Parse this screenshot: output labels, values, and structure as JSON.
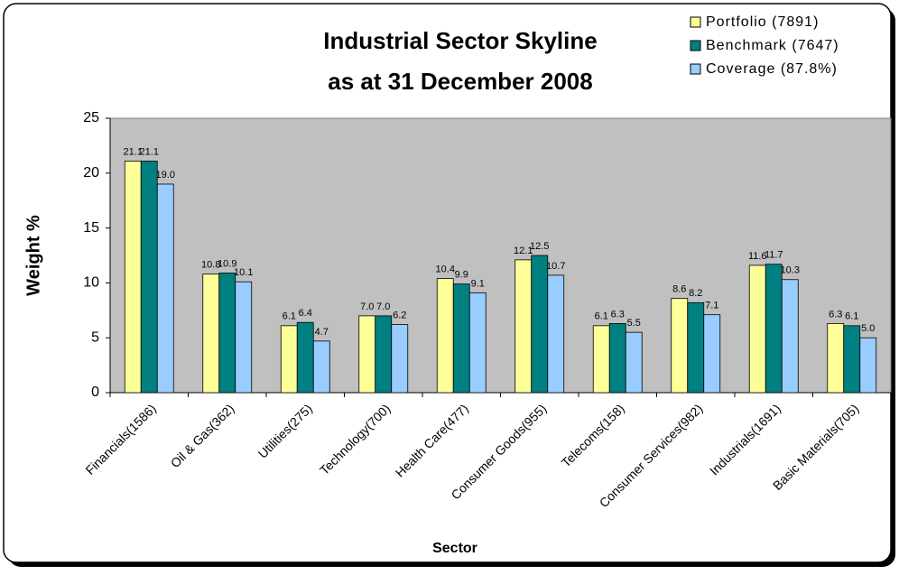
{
  "chart_data": {
    "type": "bar",
    "title": [
      "Industrial Sector Skyline",
      "as at 31 December 2008"
    ],
    "x_label": "Sector",
    "y_label": "Weight %",
    "categories": [
      "Financials(1586)",
      "Oil & Gas(362)",
      "Utilities(275)",
      "Technology(700)",
      "Health Care(477)",
      "Consumer Goods(955)",
      "Telecoms(158)",
      "Consumer Services(982)",
      "Industrials(1691)",
      "Basic Materials(705)"
    ],
    "series": [
      {
        "name": "Portfolio (7891)",
        "color": "#ffff99",
        "values": [
          21.1,
          10.8,
          6.1,
          7.0,
          10.4,
          12.1,
          6.1,
          8.6,
          11.6,
          6.3
        ],
        "value_labels": [
          "21.1",
          "10.8",
          "6.1",
          "7.0",
          "10.4",
          "12.1",
          "6.1",
          "8.6",
          "11.6",
          "6.3"
        ]
      },
      {
        "name": "Benchmark (7647)",
        "color": "#008080",
        "values": [
          21.1,
          10.9,
          6.4,
          7.0,
          9.9,
          12.5,
          6.3,
          8.2,
          11.7,
          6.1
        ],
        "value_labels": [
          "21.1",
          "10.9",
          "6.4",
          "7.0",
          "9.9",
          "12.5",
          "6.3",
          "8.2",
          "11.7",
          "6.1"
        ]
      },
      {
        "name": "Coverage (87.8%)",
        "color": "#99ccff",
        "values": [
          19.0,
          10.1,
          4.7,
          6.2,
          9.1,
          10.7,
          5.5,
          7.1,
          10.3,
          5.0
        ],
        "value_labels": [
          "19.0",
          "10.1",
          "4.7",
          "6.2",
          "9.1",
          "10.7",
          "5.5",
          "7.1",
          "10.3",
          "5.0"
        ]
      }
    ],
    "ylim": [
      0,
      25
    ],
    "yticks": [
      0,
      5,
      10,
      15,
      20,
      25
    ],
    "plot_background": "#c0c0c0",
    "legend": "top-right"
  }
}
